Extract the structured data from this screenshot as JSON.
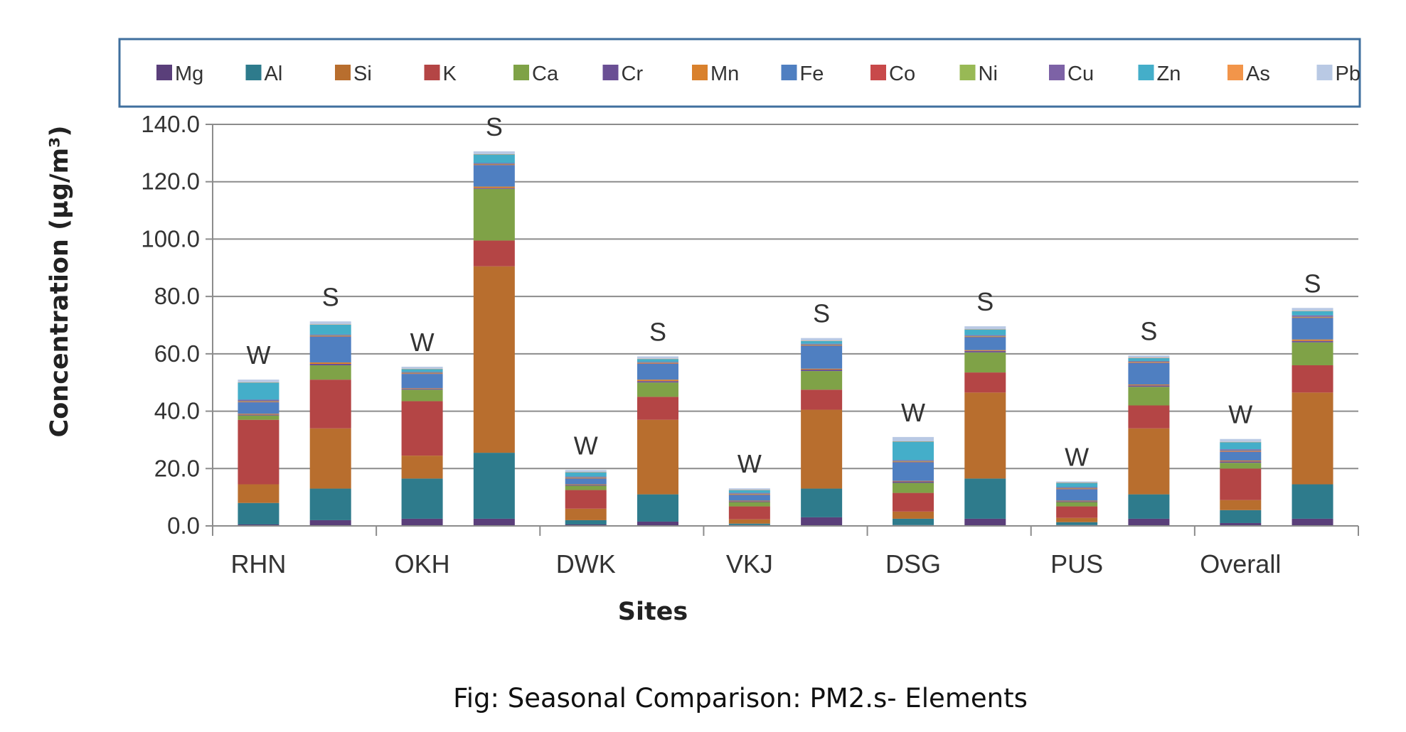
{
  "chart_data": {
    "type": "bar",
    "stacked": true,
    "ylabel": "Concentration (µg/m³)",
    "xlabel": "Sites",
    "caption": "Fig: Seasonal Comparison: PM2.s- Elements",
    "ylim": [
      0,
      140
    ],
    "yticks": [
      "0.0",
      "20.0",
      "40.0",
      "60.0",
      "80.0",
      "100.0",
      "120.0",
      "140.0"
    ],
    "grid": true,
    "legend_position": "top",
    "sites": [
      "RHN",
      "OKH",
      "DWK",
      "VKJ",
      "DSG",
      "PUS",
      "Overall"
    ],
    "seasons": [
      "W",
      "S"
    ],
    "categories": [
      "RHN-W",
      "RHN-S",
      "OKH-W",
      "OKH-S",
      "DWK-W",
      "DWK-S",
      "VKJ-W",
      "VKJ-S",
      "DSG-W",
      "DSG-S",
      "PUS-W",
      "PUS-S",
      "Overall-W",
      "Overall-S"
    ],
    "series": [
      {
        "name": "Mg",
        "color": "#5a3f7a",
        "values": [
          0.5,
          2.0,
          2.5,
          2.5,
          0.5,
          1.5,
          0.3,
          3.0,
          0.3,
          2.5,
          0.3,
          2.5,
          1.0,
          2.5
        ]
      },
      {
        "name": "Al",
        "color": "#2e7b8c",
        "values": [
          7.5,
          11.0,
          14.0,
          23.0,
          1.5,
          9.5,
          0.5,
          10.0,
          2.2,
          14.0,
          1.0,
          8.5,
          4.5,
          12.0
        ]
      },
      {
        "name": "Si",
        "color": "#b86e2e",
        "values": [
          6.5,
          21.0,
          8.0,
          65.0,
          4.0,
          26.0,
          1.5,
          27.5,
          2.5,
          30.0,
          1.5,
          23.0,
          3.5,
          32.0
        ]
      },
      {
        "name": "K",
        "color": "#b44545",
        "values": [
          22.5,
          17.0,
          19.0,
          9.0,
          6.5,
          8.0,
          4.5,
          7.0,
          6.5,
          7.0,
          4.0,
          8.0,
          11.0,
          9.5
        ]
      },
      {
        "name": "Ca",
        "color": "#7fa247",
        "values": [
          1.5,
          5.0,
          4.0,
          18.0,
          1.5,
          5.0,
          1.5,
          6.5,
          3.5,
          7.0,
          1.5,
          6.5,
          2.0,
          8.0
        ]
      },
      {
        "name": "Cr",
        "color": "#6a4f94",
        "values": [
          0.3,
          0.5,
          0.3,
          0.3,
          0.3,
          0.5,
          0.3,
          0.5,
          0.5,
          0.5,
          0.3,
          0.5,
          0.5,
          0.5
        ]
      },
      {
        "name": "Mn",
        "color": "#d9812d",
        "values": [
          0.3,
          0.5,
          0.2,
          0.5,
          0.2,
          0.5,
          0.2,
          0.3,
          0.2,
          0.3,
          0.2,
          0.3,
          0.3,
          0.5
        ]
      },
      {
        "name": "Fe",
        "color": "#4f7fc1",
        "values": [
          4.0,
          9.0,
          5.0,
          7.5,
          2.0,
          5.5,
          2.0,
          8.0,
          6.5,
          4.5,
          4.0,
          7.5,
          3.0,
          7.5
        ]
      },
      {
        "name": "Co",
        "color": "#c8494a",
        "values": [
          0.2,
          0.2,
          0.2,
          0.2,
          0.2,
          0.2,
          0.2,
          0.2,
          0.2,
          0.2,
          0.2,
          0.2,
          0.2,
          0.2
        ]
      },
      {
        "name": "Ni",
        "color": "#98b955",
        "values": [
          0.2,
          0.2,
          0.2,
          0.2,
          0.2,
          0.2,
          0.2,
          0.2,
          0.2,
          0.2,
          0.2,
          0.2,
          0.2,
          0.2
        ]
      },
      {
        "name": "Cu",
        "color": "#7d62a6",
        "values": [
          0.5,
          0.3,
          0.3,
          0.3,
          0.3,
          0.3,
          0.3,
          0.3,
          0.3,
          0.3,
          0.3,
          0.3,
          0.5,
          0.5
        ]
      },
      {
        "name": "Zn",
        "color": "#44aec9",
        "values": [
          6.0,
          3.5,
          1.0,
          3.0,
          1.5,
          1.0,
          1.0,
          1.0,
          6.5,
          2.0,
          1.5,
          1.0,
          2.5,
          1.5
        ]
      },
      {
        "name": "As",
        "color": "#f2954a",
        "values": [
          0.1,
          0.1,
          0.1,
          0.1,
          0.1,
          0.1,
          0.1,
          0.1,
          0.1,
          0.1,
          0.1,
          0.1,
          0.1,
          0.1
        ]
      },
      {
        "name": "Pb",
        "color": "#b9c9e4",
        "values": [
          0.9,
          1.0,
          0.7,
          1.0,
          0.7,
          0.8,
          0.5,
          0.9,
          1.5,
          1.0,
          0.4,
          0.8,
          1.0,
          1.0
        ]
      }
    ]
  }
}
